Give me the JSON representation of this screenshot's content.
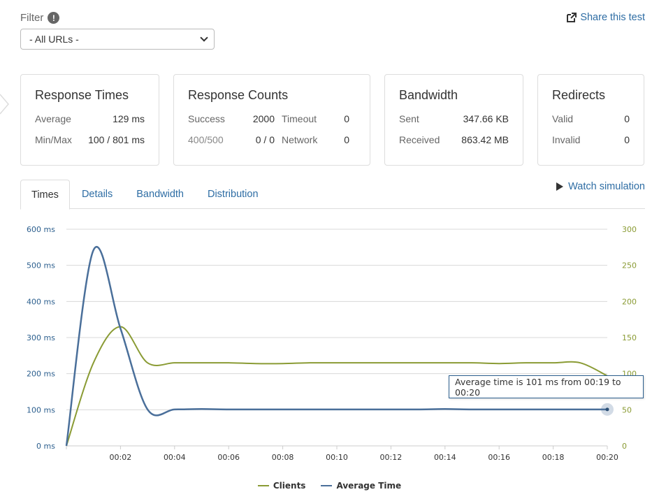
{
  "filter": {
    "label": "Filter",
    "info_glyph": "!",
    "selected": "- All URLs -"
  },
  "share": {
    "label": "Share this test",
    "icon": "share-icon"
  },
  "cards": {
    "response_times": {
      "title": "Response Times",
      "average_label": "Average",
      "average_value": "129 ms",
      "minmax_label": "Min/Max",
      "minmax_value": "100 / 801 ms"
    },
    "response_counts": {
      "title": "Response Counts",
      "success_label": "Success",
      "success_value": "2000",
      "timeout_label": "Timeout",
      "timeout_value": "0",
      "err_label": "400/500",
      "err_value": "0 / 0",
      "network_label": "Network",
      "network_value": "0"
    },
    "bandwidth": {
      "title": "Bandwidth",
      "sent_label": "Sent",
      "sent_value": "347.66 KB",
      "received_label": "Received",
      "received_value": "863.42 MB"
    },
    "redirects": {
      "title": "Redirects",
      "valid_label": "Valid",
      "valid_value": "0",
      "invalid_label": "Invalid",
      "invalid_value": "0"
    }
  },
  "tabs": [
    {
      "label": "Times",
      "active": true
    },
    {
      "label": "Details",
      "active": false
    },
    {
      "label": "Bandwidth",
      "active": false
    },
    {
      "label": "Distribution",
      "active": false
    }
  ],
  "watch": {
    "label": "Watch simulation"
  },
  "tooltip": {
    "text": "Average time is 101 ms from 00:19 to 00:20"
  },
  "colors": {
    "clients": "#8a9b34",
    "average_time": "#4a6f9a",
    "link": "#2e6da4"
  },
  "chart_data": {
    "type": "line",
    "x": [
      0,
      1,
      2,
      3,
      4,
      5,
      6,
      7,
      8,
      9,
      10,
      11,
      12,
      13,
      14,
      15,
      16,
      17,
      18,
      19,
      20
    ],
    "x_ticks": [
      "00:02",
      "00:04",
      "00:06",
      "00:08",
      "00:10",
      "00:12",
      "00:14",
      "00:16",
      "00:18",
      "00:20"
    ],
    "y_left_ticks": [
      "0 ms",
      "100 ms",
      "200 ms",
      "300 ms",
      "400 ms",
      "500 ms",
      "600 ms"
    ],
    "y_right_ticks": [
      "0",
      "50",
      "100",
      "150",
      "200",
      "250",
      "300"
    ],
    "y_left_range": [
      0,
      600
    ],
    "y_right_range": [
      0,
      300
    ],
    "grid": true,
    "legend_position": "bottom-center",
    "series": [
      {
        "name": "Clients",
        "axis": "right",
        "values": [
          0,
          115,
          165,
          115,
          115,
          115,
          115,
          114,
          114,
          115,
          115,
          115,
          115,
          115,
          115,
          115,
          114,
          115,
          115,
          115,
          97
        ]
      },
      {
        "name": "Average Time",
        "axis": "left",
        "values": [
          0,
          542,
          325,
          101,
          101,
          102,
          101,
          101,
          101,
          101,
          101,
          101,
          101,
          101,
          102,
          101,
          101,
          101,
          101,
          101,
          101
        ]
      }
    ]
  }
}
